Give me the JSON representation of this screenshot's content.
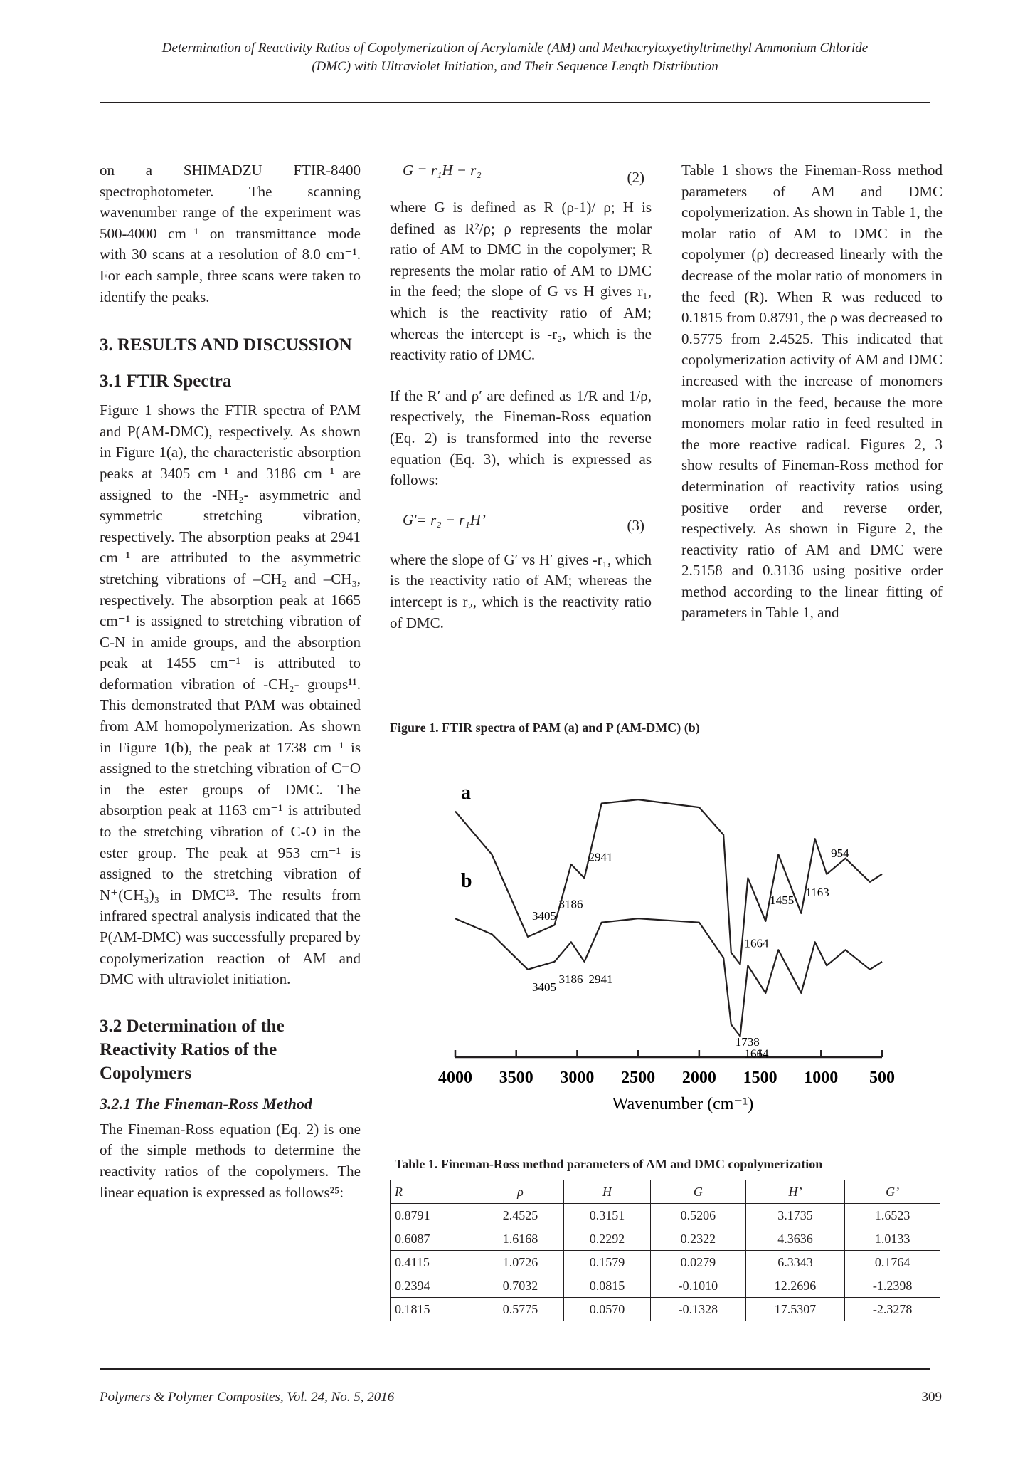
{
  "header": {
    "title_line1": "Determination of Reactivity Ratios of Copolymerization of Acrylamide (AM) and Methacryloxyethyltrimethyl Ammonium Chloride",
    "title_line2": "(DMC) with Ultraviolet Initiation, and Their Sequence Length Distribution"
  },
  "col1": {
    "intro": "on a SHIMADZU FTIR-8400 spectrophotometer. The scanning wavenumber range of the experiment was 500-4000 cm⁻¹ on transmittance mode with 30 scans at a resolution of 8.0 cm⁻¹. For each sample, three scans were taken to identify the peaks.",
    "h_results": "3. RESULTS AND DISCUSSION",
    "h_ftir": "3.1 FTIR Spectra",
    "ftir_text": "Figure 1 shows the FTIR spectra of PAM and P(AM-DMC), respectively. As shown in Figure 1(a), the characteristic absorption peaks at 3405 cm⁻¹ and 3186 cm⁻¹ are assigned to the -NH₂- asymmetric and symmetric stretching vibration, respectively. The absorption peaks at 2941 cm⁻¹ are attributed to the asymmetric stretching vibrations of –CH₂ and –CH₃, respectively. The absorption peak at 1665 cm⁻¹ is assigned to stretching vibration of C-N in amide groups, and the absorption peak at 1455 cm⁻¹ is attributed to deformation vibration of -CH₂- groups¹¹. This demonstrated that PAM was obtained from AM homopolymerization. As shown in Figure 1(b), the peak at 1738 cm⁻¹ is assigned to the stretching vibration of C=O in the ester groups of DMC. The absorption peak at 1163 cm⁻¹ is attributed to the stretching vibration of C-O in the ester group. The peak at 953 cm⁻¹ is assigned to the stretching vibration of N⁺(CH₃)₃ in DMC¹³. The results from infrared spectral analysis indicated that the P(AM-DMC) was successfully prepared by copolymerization reaction of AM and DMC with ultraviolet initiation.",
    "h_reactivity": "3.2 Determination of the Reactivity Ratios of the Copolymers",
    "h_fr_method": "3.2.1 The Fineman-Ross Method",
    "fr_text": "The Fineman-Ross equation (Eq. 2) is one of the simple methods to determine the reactivity ratios of the copolymers. The linear equation is expressed as follows²⁵:"
  },
  "col2": {
    "eq2": "G = r₁H − r₂",
    "eq2_num": "(2)",
    "p1": "where G is defined as R (ρ-1)/ ρ; H is defined as R²/ρ; ρ represents the molar ratio of AM to DMC in the copolymer; R represents the molar ratio of AM to DMC in the feed; the slope of G vs H gives r₁, which is the reactivity ratio of AM; whereas the intercept is -r₂, which is the reactivity ratio of DMC.",
    "p2": "If the R′ and ρ′ are defined as 1/R and 1/ρ, respectively, the Fineman-Ross equation (Eq. 2) is transformed into the reverse equation (Eq. 3), which is expressed as follows:",
    "eq3": "G'= r₂ − r₁H’",
    "eq3_num": "(3)",
    "p3": "where the slope of G′ vs H′ gives -r₁, which is the reactivity ratio of AM; whereas the intercept is r₂, which is the reactivity ratio of DMC."
  },
  "col3": {
    "text": "Table 1 shows the Fineman-Ross method parameters of AM and DMC copolymerization. As shown in Table 1, the molar ratio of AM to DMC in the copolymer (ρ) decreased linearly with the decrease of the molar ratio of monomers in the feed (R). When R was reduced to 0.1815 from 0.8791, the ρ was decreased to 0.5775 from 2.4525. This indicated that copolymerization activity of AM and DMC increased with the increase of monomers molar ratio in the feed, because the more monomers molar ratio in feed resulted in the more reactive radical. Figures 2, 3 show results of Fineman-Ross method for determination of reactivity ratios using positive order and reverse order, respectively. As shown in Figure 2, the reactivity ratio of AM and DMC were 2.5158 and 0.3136 using positive order method according to the linear fitting of parameters in Table 1, and"
  },
  "figure1": {
    "caption": "Figure 1. FTIR spectra of PAM (a) and P (AM-DMC) (b)",
    "label_a": "a",
    "label_b": "b",
    "xlabel": "Wavenumber (cm⁻¹)",
    "ticks": [
      "4000",
      "3500",
      "3000",
      "2500",
      "2000",
      "1500",
      "1000",
      "500"
    ],
    "peaks_a": [
      "2941",
      "3186",
      "3405",
      "1664",
      "1455",
      "1163",
      "954"
    ],
    "peaks_b": [
      "2941",
      "3186",
      "3405",
      "1738",
      "1664"
    ]
  },
  "chart_data": {
    "type": "line",
    "title": "",
    "xlabel": "Wavenumber (cm⁻¹)",
    "ylabel": "",
    "xlim": [
      4000,
      500
    ],
    "x_reversed": true,
    "series": [
      {
        "name": "a",
        "x": [
          4000,
          3700,
          3405,
          3186,
          3050,
          2941,
          2800,
          2500,
          2000,
          1800,
          1738,
          1664,
          1600,
          1455,
          1350,
          1163,
          1050,
          954,
          800,
          600,
          500
        ],
        "y": [
          82,
          60,
          18,
          24,
          55,
          48,
          86,
          88,
          84,
          70,
          10,
          4,
          48,
          26,
          60,
          30,
          68,
          50,
          58,
          46,
          50
        ]
      },
      {
        "name": "b",
        "x": [
          4000,
          3700,
          3405,
          3186,
          3050,
          2941,
          2800,
          2500,
          2000,
          1800,
          1738,
          1664,
          1600,
          1455,
          1350,
          1163,
          1050,
          954,
          800,
          600,
          500
        ],
        "y": [
          60,
          52,
          34,
          38,
          48,
          38,
          58,
          60,
          58,
          40,
          6,
          0,
          36,
          22,
          44,
          22,
          48,
          36,
          44,
          34,
          38
        ]
      }
    ],
    "grid": false
  },
  "table1": {
    "caption": "Table 1. Fineman-Ross method parameters of AM and DMC copolymerization",
    "headers": [
      "R",
      "ρ",
      "H",
      "G",
      "H’",
      "G’"
    ],
    "rows": [
      [
        "0.8791",
        "2.4525",
        "0.3151",
        "0.5206",
        "3.1735",
        "1.6523"
      ],
      [
        "0.6087",
        "1.6168",
        "0.2292",
        "0.2322",
        "4.3636",
        "1.0133"
      ],
      [
        "0.4115",
        "1.0726",
        "0.1579",
        "0.0279",
        "6.3343",
        "0.1764"
      ],
      [
        "0.2394",
        "0.7032",
        "0.0815",
        "-0.1010",
        "12.2696",
        "-1.2398"
      ],
      [
        "0.1815",
        "0.5775",
        "0.0570",
        "-0.1328",
        "17.5307",
        "-2.3278"
      ]
    ]
  },
  "footer": {
    "journal": "Polymers & Polymer Composites, Vol. 24, No. 5, 2016",
    "page": "309"
  }
}
